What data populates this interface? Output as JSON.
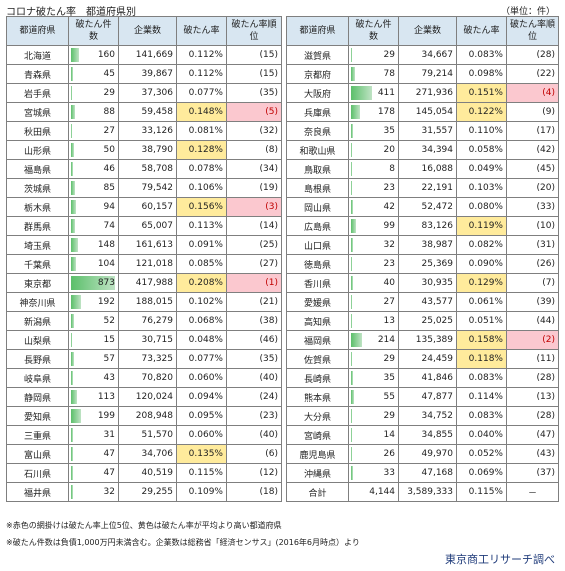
{
  "title": "コロナ破たん率　都道府県別",
  "unit": "（単位：件）",
  "headers": {
    "pref": "都道府県",
    "count": "破たん件数",
    "companies": "企業数",
    "rate": "破たん率",
    "rank": "破たん率順位"
  },
  "colors": {
    "yellow": "#ffeb9c",
    "pink": "#fbc8cf",
    "header": "#d8e6f1",
    "bar": "#5bbf6a"
  },
  "max_count": 873,
  "left_rows": [
    {
      "pref": "北海道",
      "count": 160,
      "companies": "141,669",
      "rate": "0.112%",
      "rank": "(15)",
      "hl": ""
    },
    {
      "pref": "青森県",
      "count": 45,
      "companies": "39,867",
      "rate": "0.112%",
      "rank": "(15)",
      "hl": ""
    },
    {
      "pref": "岩手県",
      "count": 29,
      "companies": "37,306",
      "rate": "0.077%",
      "rank": "(35)",
      "hl": ""
    },
    {
      "pref": "宮城県",
      "count": 88,
      "companies": "59,458",
      "rate": "0.148%",
      "rank": "(5)",
      "hl": "red"
    },
    {
      "pref": "秋田県",
      "count": 27,
      "companies": "33,126",
      "rate": "0.081%",
      "rank": "(32)",
      "hl": ""
    },
    {
      "pref": "山形県",
      "count": 50,
      "companies": "38,790",
      "rate": "0.128%",
      "rank": "(8)",
      "hl": "yellow"
    },
    {
      "pref": "福島県",
      "count": 46,
      "companies": "58,708",
      "rate": "0.078%",
      "rank": "(34)",
      "hl": ""
    },
    {
      "pref": "茨城県",
      "count": 85,
      "companies": "79,542",
      "rate": "0.106%",
      "rank": "(19)",
      "hl": ""
    },
    {
      "pref": "栃木県",
      "count": 94,
      "companies": "60,157",
      "rate": "0.156%",
      "rank": "(3)",
      "hl": "red"
    },
    {
      "pref": "群馬県",
      "count": 74,
      "companies": "65,007",
      "rate": "0.113%",
      "rank": "(14)",
      "hl": ""
    },
    {
      "pref": "埼玉県",
      "count": 148,
      "companies": "161,613",
      "rate": "0.091%",
      "rank": "(25)",
      "hl": ""
    },
    {
      "pref": "千葉県",
      "count": 104,
      "companies": "121,018",
      "rate": "0.085%",
      "rank": "(27)",
      "hl": ""
    },
    {
      "pref": "東京都",
      "count": 873,
      "companies": "417,988",
      "rate": "0.208%",
      "rank": "(1)",
      "hl": "red"
    },
    {
      "pref": "神奈川県",
      "count": 192,
      "companies": "188,015",
      "rate": "0.102%",
      "rank": "(21)",
      "hl": ""
    },
    {
      "pref": "新潟県",
      "count": 52,
      "companies": "76,279",
      "rate": "0.068%",
      "rank": "(38)",
      "hl": ""
    },
    {
      "pref": "山梨県",
      "count": 15,
      "companies": "30,715",
      "rate": "0.048%",
      "rank": "(46)",
      "hl": ""
    },
    {
      "pref": "長野県",
      "count": 57,
      "companies": "73,325",
      "rate": "0.077%",
      "rank": "(35)",
      "hl": ""
    },
    {
      "pref": "岐阜県",
      "count": 43,
      "companies": "70,820",
      "rate": "0.060%",
      "rank": "(40)",
      "hl": ""
    },
    {
      "pref": "静岡県",
      "count": 113,
      "companies": "120,024",
      "rate": "0.094%",
      "rank": "(24)",
      "hl": ""
    },
    {
      "pref": "愛知県",
      "count": 199,
      "companies": "208,948",
      "rate": "0.095%",
      "rank": "(23)",
      "hl": ""
    },
    {
      "pref": "三重県",
      "count": 31,
      "companies": "51,570",
      "rate": "0.060%",
      "rank": "(40)",
      "hl": ""
    },
    {
      "pref": "富山県",
      "count": 47,
      "companies": "34,706",
      "rate": "0.135%",
      "rank": "(6)",
      "hl": "yellow"
    },
    {
      "pref": "石川県",
      "count": 47,
      "companies": "40,519",
      "rate": "0.115%",
      "rank": "(12)",
      "hl": ""
    },
    {
      "pref": "福井県",
      "count": 32,
      "companies": "29,255",
      "rate": "0.109%",
      "rank": "(18)",
      "hl": ""
    }
  ],
  "right_rows": [
    {
      "pref": "滋賀県",
      "count": 29,
      "companies": "34,667",
      "rate": "0.083%",
      "rank": "(28)",
      "hl": ""
    },
    {
      "pref": "京都府",
      "count": 78,
      "companies": "79,214",
      "rate": "0.098%",
      "rank": "(22)",
      "hl": ""
    },
    {
      "pref": "大阪府",
      "count": 411,
      "companies": "271,936",
      "rate": "0.151%",
      "rank": "(4)",
      "hl": "red"
    },
    {
      "pref": "兵庫県",
      "count": 178,
      "companies": "145,054",
      "rate": "0.122%",
      "rank": "(9)",
      "hl": "yellow"
    },
    {
      "pref": "奈良県",
      "count": 35,
      "companies": "31,557",
      "rate": "0.110%",
      "rank": "(17)",
      "hl": ""
    },
    {
      "pref": "和歌山県",
      "count": 20,
      "companies": "34,394",
      "rate": "0.058%",
      "rank": "(42)",
      "hl": ""
    },
    {
      "pref": "鳥取県",
      "count": 8,
      "companies": "16,088",
      "rate": "0.049%",
      "rank": "(45)",
      "hl": ""
    },
    {
      "pref": "島根県",
      "count": 23,
      "companies": "22,191",
      "rate": "0.103%",
      "rank": "(20)",
      "hl": ""
    },
    {
      "pref": "岡山県",
      "count": 42,
      "companies": "52,472",
      "rate": "0.080%",
      "rank": "(33)",
      "hl": ""
    },
    {
      "pref": "広島県",
      "count": 99,
      "companies": "83,126",
      "rate": "0.119%",
      "rank": "(10)",
      "hl": "yellow"
    },
    {
      "pref": "山口県",
      "count": 32,
      "companies": "38,987",
      "rate": "0.082%",
      "rank": "(31)",
      "hl": ""
    },
    {
      "pref": "徳島県",
      "count": 23,
      "companies": "25,369",
      "rate": "0.090%",
      "rank": "(26)",
      "hl": ""
    },
    {
      "pref": "香川県",
      "count": 40,
      "companies": "30,935",
      "rate": "0.129%",
      "rank": "(7)",
      "hl": "yellow"
    },
    {
      "pref": "愛媛県",
      "count": 27,
      "companies": "43,577",
      "rate": "0.061%",
      "rank": "(39)",
      "hl": ""
    },
    {
      "pref": "高知県",
      "count": 13,
      "companies": "25,025",
      "rate": "0.051%",
      "rank": "(44)",
      "hl": ""
    },
    {
      "pref": "福岡県",
      "count": 214,
      "companies": "135,389",
      "rate": "0.158%",
      "rank": "(2)",
      "hl": "red"
    },
    {
      "pref": "佐賀県",
      "count": 29,
      "companies": "24,459",
      "rate": "0.118%",
      "rank": "(11)",
      "hl": "yellow"
    },
    {
      "pref": "長崎県",
      "count": 35,
      "companies": "41,846",
      "rate": "0.083%",
      "rank": "(28)",
      "hl": ""
    },
    {
      "pref": "熊本県",
      "count": 55,
      "companies": "47,877",
      "rate": "0.114%",
      "rank": "(13)",
      "hl": ""
    },
    {
      "pref": "大分県",
      "count": 29,
      "companies": "34,752",
      "rate": "0.083%",
      "rank": "(28)",
      "hl": ""
    },
    {
      "pref": "宮崎県",
      "count": 14,
      "companies": "34,855",
      "rate": "0.040%",
      "rank": "(47)",
      "hl": ""
    },
    {
      "pref": "鹿児島県",
      "count": 26,
      "companies": "49,970",
      "rate": "0.052%",
      "rank": "(43)",
      "hl": ""
    },
    {
      "pref": "沖縄県",
      "count": 33,
      "companies": "47,168",
      "rate": "0.069%",
      "rank": "(37)",
      "hl": ""
    }
  ],
  "total": {
    "label": "合計",
    "count": "4,144",
    "companies": "3,589,333",
    "rate": "0.115%",
    "rank": "－"
  },
  "note1": "※赤色の網掛けは破たん率上位5位、黄色は破たん率が平均より高い都道府県",
  "note2": "※破たん件数は負債1,000万円未満含む。企業数は総務省「経済センサス」(2016年6月時点）より",
  "source": "東京商工リサーチ調べ"
}
